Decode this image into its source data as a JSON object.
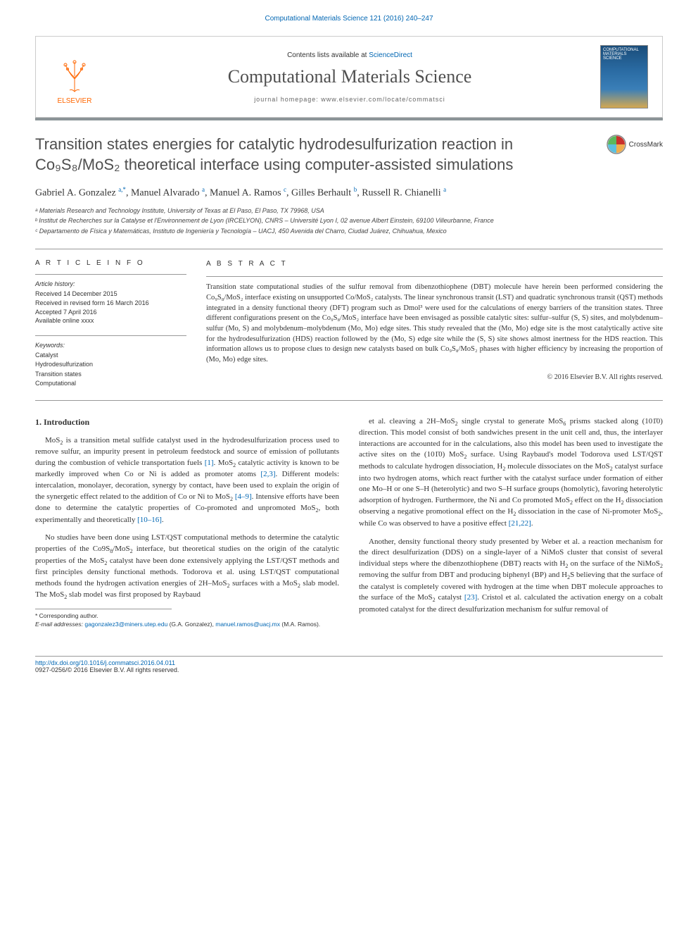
{
  "header": {
    "journal_ref": "Computational Materials Science 121 (2016) 240–247"
  },
  "infobar": {
    "contents_prefix": "Contents lists available at ",
    "contents_link": "ScienceDirect",
    "journal_name": "Computational Materials Science",
    "homepage_label": "journal homepage: ",
    "homepage_url": "www.elsevier.com/locate/commatsci",
    "publisher": "ELSEVIER",
    "cover_text": "COMPUTATIONAL MATERIALS SCIENCE"
  },
  "crossmark": {
    "label": "CrossMark"
  },
  "title": "Transition states energies for catalytic hydrodesulfurization reaction in Co₉S₈/MoS₂ theoretical interface using computer-assisted simulations",
  "authors_html": "Gabriel A. Gonzalez <sup>a,*</sup>, Manuel Alvarado <sup>a</sup>, Manuel A. Ramos <sup>c</sup>, Gilles Berhault <sup>b</sup>, Russell R. Chianelli <sup>a</sup>",
  "affiliations": [
    "ᵃ Materials Research and Technology Institute, University of Texas at El Paso, El Paso, TX 79968, USA",
    "ᵇ Institut de Recherches sur la Catalyse et l'Environnement de Lyon (IRCELYON), CNRS – Université Lyon I, 02 avenue Albert Einstein, 69100 Villeurbanne, France",
    "ᶜ Departamento de Física y Matemáticas, Instituto de Ingeniería y Tecnología – UACJ, 450 Avenida del Charro, Ciudad Juárez, Chihuahua, Mexico"
  ],
  "info": {
    "heading": "A R T I C L E   I N F O",
    "history_label": "Article history:",
    "history": [
      "Received 14 December 2015",
      "Received in revised form 16 March 2016",
      "Accepted 7 April 2016",
      "Available online xxxx"
    ],
    "kw_label": "Keywords:",
    "keywords": [
      "Catalyst",
      "Hydrodesulfurization",
      "Transition states",
      "Computational"
    ]
  },
  "abstract": {
    "heading": "A B S T R A C T",
    "text": "Transition state computational studies of the sulfur removal from dibenzothiophene (DBT) molecule have herein been performed considering the Co₉S₈/MoS₂ interface existing on unsupported Co/MoS₂ catalysts. The linear synchronous transit (LST) and quadratic synchronous transit (QST) methods integrated in a density functional theory (DFT) program such as Dmol³ were used for the calculations of energy barriers of the transition states. Three different configurations present on the Co₉S₈/MoS₂ interface have been envisaged as possible catalytic sites: sulfur–sulfur (S, S) sites, and molybdenum–sulfur (Mo, S) and molybdenum–molybdenum (Mo, Mo) edge sites. This study revealed that the (Mo, Mo) edge site is the most catalytically active site for the hydrodesulfurization (HDS) reaction followed by the (Mo, S) edge site while the (S, S) site shows almost inertness for the HDS reaction. This information allows us to propose clues to design new catalysts based on bulk Co₉S₈/MoS₂ phases with higher efficiency by increasing the proportion of (Mo, Mo) edge sites.",
    "copyright": "© 2016 Elsevier B.V. All rights reserved."
  },
  "body": {
    "section_heading": "1. Introduction",
    "paragraphs": [
      "MoS₂ is a transition metal sulfide catalyst used in the hydrodesulfurization process used to remove sulfur, an impurity present in petroleum feedstock and source of emission of pollutants during the combustion of vehicle transportation fuels [1]. MoS₂ catalytic activity is known to be markedly improved when Co or Ni is added as promoter atoms [2,3]. Different models: intercalation, monolayer, decoration, synergy by contact, have been used to explain the origin of the synergetic effect related to the addition of Co or Ni to MoS₂ [4–9]. Intensive efforts have been done to determine the catalytic properties of Co-promoted and unpromoted MoS₂, both experimentally and theoretically [10–16].",
      "No studies have been done using LST/QST computational methods to determine the catalytic properties of the Co9S₈/MoS₂ interface, but theoretical studies on the origin of the catalytic properties of the MoS₂ catalyst have been done extensively applying the LST/QST methods and first principles density functional methods. Todorova et al. using LST/QST computational methods found the hydrogen activation energies of 2H–MoS₂ surfaces with a MoS₂ slab model. The MoS₂ slab model was first proposed by Raybaud",
      "et al. cleaving a 2H–MoS₂ single crystal to generate MoS₆ prisms stacked along (101̄0) direction. This model consist of both sandwiches present in the unit cell and, thus, the interlayer interactions are accounted for in the calculations, also this model has been used to investigate the active sites on the (101̄0) MoS₂ surface. Using Raybaud's model Todorova used LST/QST methods to calculate hydrogen dissociation, H₂ molecule dissociates on the MoS₂ catalyst surface into two hydrogen atoms, which react further with the catalyst surface under formation of either one Mo–H or one S–H (heterolytic) and two S–H surface groups (homolytic), favoring heterolytic adsorption of hydrogen. Furthermore, the Ni and Co promoted MoS₂ effect on the H₂ dissociation observing a negative promotional effect on the H₂ dissociation in the case of Ni-promoter MoS₂, while Co was observed to have a positive effect [21,22].",
      "Another, density functional theory study presented by Weber et al. a reaction mechanism for the direct desulfurization (DDS) on a single-layer of a NiMoS cluster that consist of several individual steps where the dibenzothiophene (DBT) reacts with H₂ on the surface of the NiMoS₂ removing the sulfur from DBT and producing biphenyl (BP) and H₂S believing that the surface of the catalyst is completely covered with hydrogen at the time when DBT molecule approaches to the surface of the MoS₂ catalyst [23]. Cristol et al. calculated the activation energy on a cobalt promoted catalyst for the direct desulfurization mechanism for sulfur removal of"
    ],
    "ref_links": [
      "[1]",
      "[2,3]",
      "[4–9]",
      "[10–16]",
      "[21,22]",
      "[23]"
    ]
  },
  "footnote": {
    "corr_label": "* Corresponding author.",
    "email_label": "E-mail addresses:",
    "emails": [
      {
        "addr": "gagonzalez3@miners.utep.edu",
        "who": "(G.A. Gonzalez)"
      },
      {
        "addr": "manuel.ramos@uacj.mx",
        "who": "(M.A. Ramos)"
      }
    ]
  },
  "footer": {
    "doi": "http://dx.doi.org/10.1016/j.commatsci.2016.04.011",
    "issn_line": "0927-0256/© 2016 Elsevier B.V. All rights reserved."
  },
  "colors": {
    "link": "#0066b3",
    "elsevier_orange": "#ff6600",
    "rule": "#8b9497",
    "text": "#333333",
    "title_gray": "#4f4f4f"
  }
}
